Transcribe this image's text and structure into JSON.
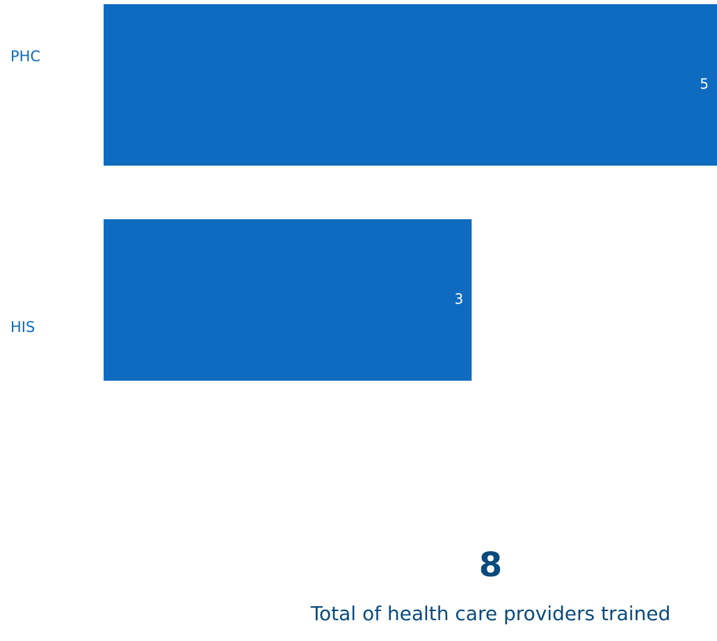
{
  "chart_data": {
    "type": "bar",
    "orientation": "horizontal",
    "categories": [
      "PHC",
      "HIS"
    ],
    "values": [
      5,
      3
    ],
    "data_labels": [
      "5",
      "3"
    ],
    "xlim": [
      0,
      5
    ],
    "grid": false,
    "bar_color": "#0f6bbf",
    "label_color": "#0f6bbf",
    "value_label_color": "#ffffff"
  },
  "kpi": {
    "value": "8",
    "label": "Total of health care providers trained",
    "color": "#0a4a7c"
  }
}
